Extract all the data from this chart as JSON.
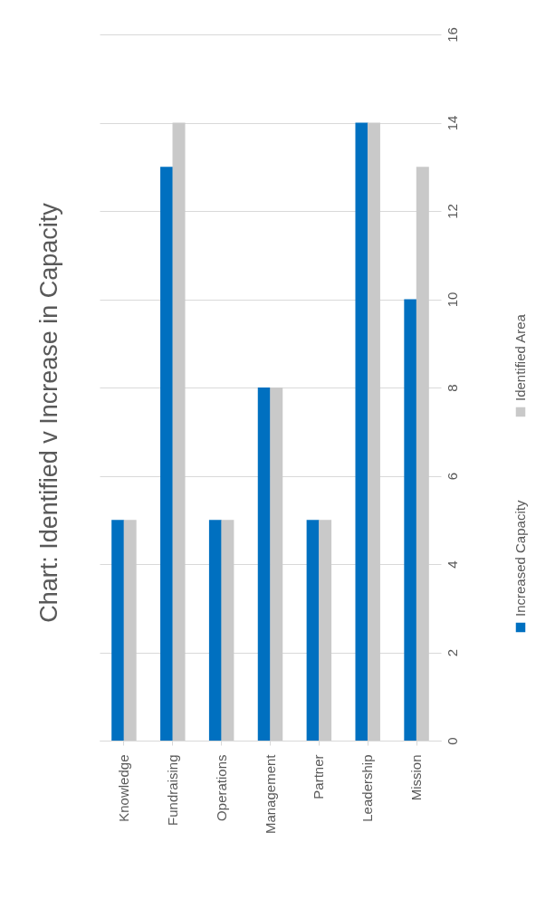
{
  "chart_data": {
    "type": "bar",
    "title": "Chart: Identified v Increase in Capacity",
    "categories": [
      "Knowledge",
      "Fundraising",
      "Operations",
      "Management",
      "Partner",
      "Leadership",
      "Mission"
    ],
    "series": [
      {
        "name": "Increased Capacity",
        "color": "#0070c0",
        "values": [
          5,
          13,
          5,
          8,
          5,
          14,
          10
        ]
      },
      {
        "name": "Identified Area",
        "color": "#c9c9c9",
        "values": [
          5,
          14,
          5,
          8,
          5,
          14,
          13
        ]
      }
    ],
    "ylim": [
      0,
      16
    ],
    "yticks": [
      0,
      2,
      4,
      6,
      8,
      10,
      12,
      14,
      16
    ],
    "grid": "y",
    "legend": "right"
  }
}
